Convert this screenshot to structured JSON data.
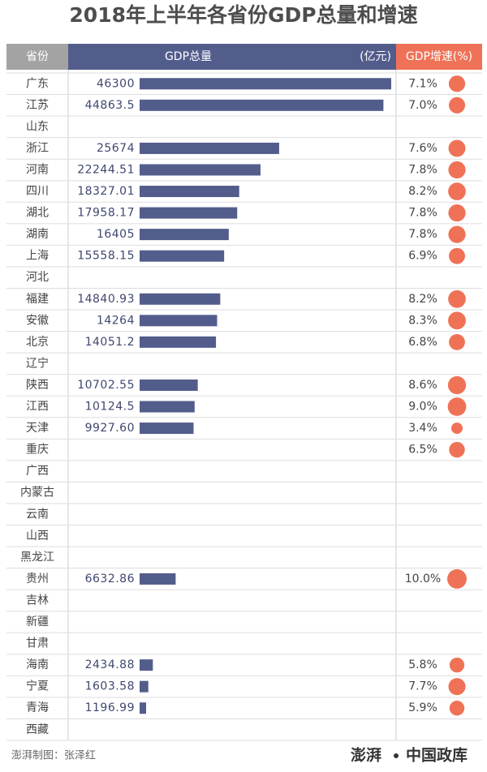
{
  "chart_data": {
    "type": "bar",
    "title": "2018年上半年各省份GDP总量和增速",
    "category_header": "省份",
    "unit": "(亿元)",
    "categories": [
      "广东",
      "江苏",
      "山东",
      "浙江",
      "河南",
      "四川",
      "湖北",
      "湖南",
      "上海",
      "河北",
      "福建",
      "安徽",
      "北京",
      "辽宁",
      "陕西",
      "江西",
      "天津",
      "重庆",
      "广西",
      "内蒙古",
      "云南",
      "山西",
      "黑龙江",
      "贵州",
      "吉林",
      "新疆",
      "甘肃",
      "海南",
      "宁夏",
      "青海",
      "西藏"
    ],
    "xlim": [
      0,
      46300
    ],
    "series": [
      {
        "name": "GDP总量",
        "color": "#535d8c",
        "values": [
          46300,
          44863.5,
          null,
          25674,
          22244.51,
          18327.01,
          17958.17,
          16405,
          15558.15,
          null,
          14840.93,
          14264,
          14051.2,
          null,
          10702.55,
          10124.5,
          9927.6,
          null,
          null,
          null,
          null,
          null,
          null,
          6632.86,
          null,
          null,
          null,
          2434.88,
          1603.58,
          1196.99,
          null
        ],
        "value_labels": [
          "46300",
          "44863.5",
          null,
          "25674",
          "22244.51",
          "18327.01",
          "17958.17",
          "16405",
          "15558.15",
          null,
          "14840.93",
          "14264",
          "14051.2",
          null,
          "10702.55",
          "10124.5",
          "9927.60",
          null,
          null,
          null,
          null,
          null,
          null,
          "6632.86",
          null,
          null,
          null,
          "2434.88",
          "1603.58",
          "1196.99",
          null
        ]
      },
      {
        "name": "GDP增速(%)",
        "color": "#ef7257",
        "values": [
          7.1,
          7,
          null,
          7.6,
          7.8,
          8.2,
          7.8,
          7.8,
          6.9,
          null,
          8.2,
          8.3,
          6.8,
          null,
          8.6,
          9,
          3.4,
          6.5,
          null,
          null,
          null,
          null,
          null,
          10,
          null,
          null,
          null,
          5.8,
          7.7,
          5.9,
          null
        ],
        "value_labels": [
          "7.1%",
          "7.0%",
          null,
          "7.6%",
          "7.8%",
          "8.2%",
          "7.8%",
          "7.8%",
          "6.9%",
          null,
          "8.2%",
          "8.3%",
          "6.8%",
          null,
          "8.6%",
          "9.0%",
          "3.4%",
          "6.5%",
          null,
          null,
          null,
          null,
          null,
          "10.0%",
          null,
          null,
          null,
          "5.8%",
          "7.7%",
          "5.9%",
          null
        ]
      }
    ],
    "footer": {
      "credit": "澎湃制图：张泽红",
      "logo_left": "澎湃",
      "logo_right": "中国政库"
    }
  }
}
